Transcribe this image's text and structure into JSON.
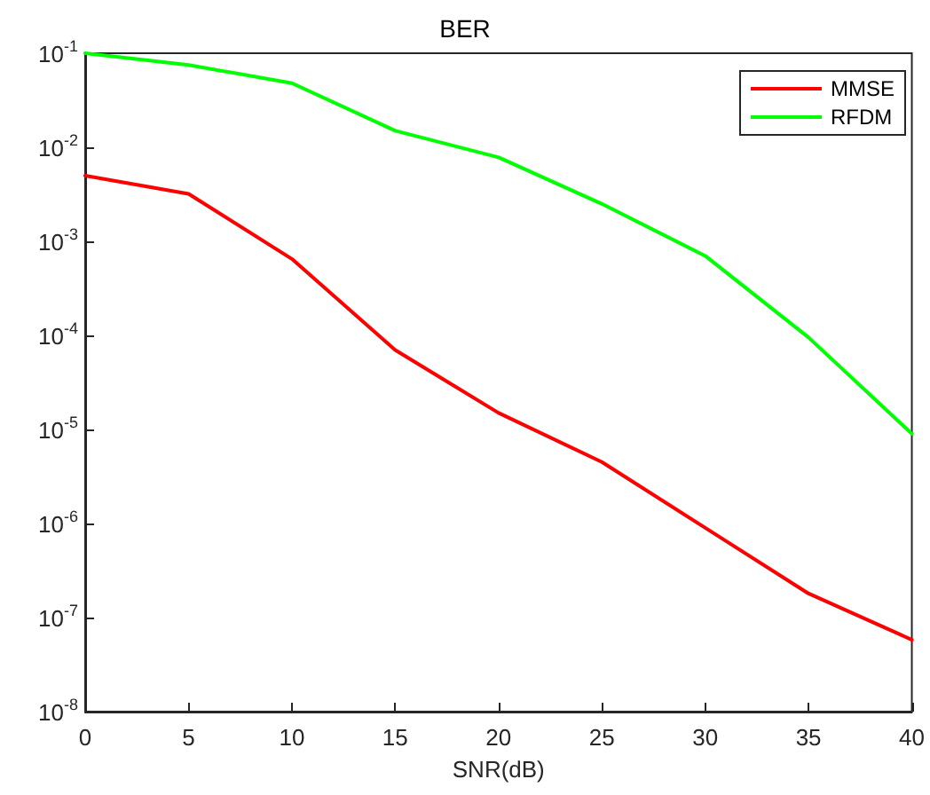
{
  "chart_data": {
    "type": "line",
    "title": "BER",
    "xlabel": "SNR(dB)",
    "x": [
      0,
      5,
      10,
      15,
      20,
      25,
      30,
      35,
      40
    ],
    "series": [
      {
        "name": "MMSE",
        "color": "#ff0000",
        "values": [
          0.005,
          0.0032,
          0.00065,
          7e-05,
          1.5e-05,
          4.5e-06,
          9e-07,
          1.8e-07,
          5.8e-08
        ]
      },
      {
        "name": "RFDM",
        "color": "#00ff00",
        "values": [
          0.1,
          0.075,
          0.048,
          0.015,
          0.0078,
          0.0025,
          0.0007,
          9.5e-05,
          9e-06
        ]
      }
    ],
    "xlim": [
      0,
      40
    ],
    "xticks": [
      0,
      5,
      10,
      15,
      20,
      25,
      30,
      35,
      40
    ],
    "ylim": [
      1e-08,
      0.1
    ],
    "yticks": [
      {
        "value": 1e-08,
        "label": "10$^{-8}$"
      },
      {
        "value": 1e-07,
        "label": "10$^{-7}$"
      },
      {
        "value": 1e-06,
        "label": "10$^{-6}$"
      },
      {
        "value": 1e-05,
        "label": "10$^{-5}$"
      },
      {
        "value": 0.0001,
        "label": "10$^{-4}$"
      },
      {
        "value": 0.001,
        "label": "10$^{-3}$"
      },
      {
        "value": 0.01,
        "label": "10$^{-2}$"
      },
      {
        "value": 0.1,
        "label": "10$^{-1}$"
      }
    ],
    "log": "y",
    "grid": false,
    "legend": "top right",
    "marker": "none",
    "line_style": "solid"
  }
}
